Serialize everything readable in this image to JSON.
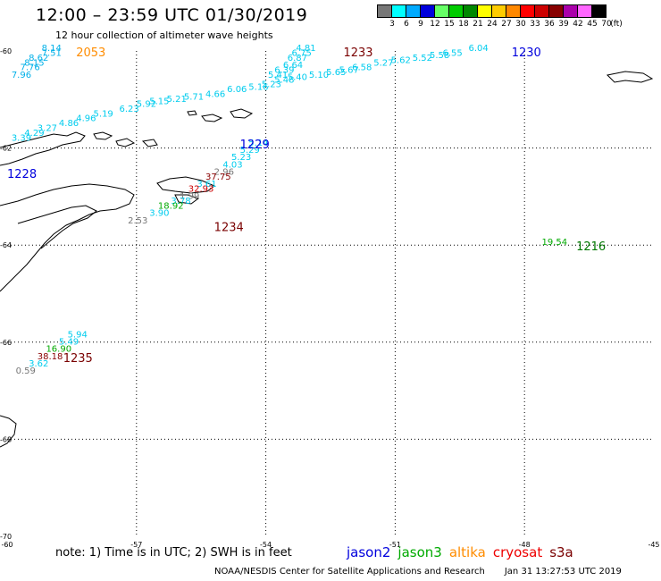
{
  "title": "12:00  –  23:59  UTC  01/30/2019",
  "subtitle": "12 hour collection of altimeter wave heights",
  "legend": {
    "unit": "(ft)",
    "levels": [
      {
        "label": "3",
        "color": "#777777"
      },
      {
        "label": "6",
        "color": "#00ffff"
      },
      {
        "label": "9",
        "color": "#00aaff"
      },
      {
        "label": "12",
        "color": "#0000dd"
      },
      {
        "label": "15",
        "color": "#66ff66"
      },
      {
        "label": "18",
        "color": "#00cc00"
      },
      {
        "label": "21",
        "color": "#008800"
      },
      {
        "label": "24",
        "color": "#ffff00"
      },
      {
        "label": "27",
        "color": "#ffcc00"
      },
      {
        "label": "30",
        "color": "#ff8800"
      },
      {
        "label": "33",
        "color": "#ff0000"
      },
      {
        "label": "36",
        "color": "#cc0000"
      },
      {
        "label": "39",
        "color": "#880000"
      },
      {
        "label": "42",
        "color": "#aa00aa"
      },
      {
        "label": "45",
        "color": "#ff66ff"
      },
      {
        "label": "70",
        "color": "#000000"
      }
    ]
  },
  "axes": {
    "lon_ticks": [
      "-60",
      "-57",
      "-54",
      "-51",
      "-48",
      "-45"
    ],
    "lat_ticks": [
      "-60",
      "-62",
      "-64",
      "-66",
      "-68",
      "-70"
    ]
  },
  "tracks": [
    {
      "time": "2053",
      "color": "#ff8c00",
      "lon": -58.4,
      "lat": -60.0
    },
    {
      "time": "1233",
      "color": "#7a0000",
      "lon": -52.2,
      "lat": -60.0
    },
    {
      "time": "1230",
      "color": "#0000dd",
      "lon": -48.3,
      "lat": -60.0
    },
    {
      "time": "1229",
      "color": "#0000dd",
      "lon": -54.6,
      "lat": -61.9
    },
    {
      "time": "1228",
      "color": "#0000dd",
      "lon": -60.0,
      "lat": -62.5
    },
    {
      "time": "1234",
      "color": "#7a0000",
      "lon": -55.2,
      "lat": -63.6
    },
    {
      "time": "1216",
      "color": "#007700",
      "lon": -46.8,
      "lat": -64.0
    },
    {
      "time": "1235",
      "color": "#7a0000",
      "lon": -58.7,
      "lat": -66.3
    }
  ],
  "wave_heights": [
    {
      "value": "8.14",
      "color": "#00b0e8",
      "lon": -59.2,
      "lat": -60.0
    },
    {
      "value": "7.51",
      "color": "#00b0e8",
      "lon": -59.2,
      "lat": -60.1
    },
    {
      "value": "8.62",
      "color": "#00b0e8",
      "lon": -59.5,
      "lat": -60.2
    },
    {
      "value": "8.15",
      "color": "#00b0e8",
      "lon": -59.6,
      "lat": -60.3
    },
    {
      "value": "7.76",
      "color": "#00b0e8",
      "lon": -59.7,
      "lat": -60.4
    },
    {
      "value": "7.96",
      "color": "#00b0e8",
      "lon": -59.9,
      "lat": -60.55
    },
    {
      "value": "4.81",
      "color": "#00ccee",
      "lon": -53.3,
      "lat": -60.0
    },
    {
      "value": "6.75",
      "color": "#00ccee",
      "lon": -53.4,
      "lat": -60.1
    },
    {
      "value": "6.87",
      "color": "#00ccee",
      "lon": -53.5,
      "lat": -60.2
    },
    {
      "value": "6.64",
      "color": "#00ccee",
      "lon": -53.6,
      "lat": -60.35
    },
    {
      "value": "6.39",
      "color": "#00ccee",
      "lon": -53.8,
      "lat": -60.45
    },
    {
      "value": "5.41",
      "color": "#00ccee",
      "lon": -53.95,
      "lat": -60.55
    },
    {
      "value": "6.04",
      "color": "#00ccee",
      "lon": -49.3,
      "lat": -60.0
    },
    {
      "value": "6.55",
      "color": "#00ccee",
      "lon": -49.9,
      "lat": -60.1
    },
    {
      "value": "5.58",
      "color": "#00ccee",
      "lon": -50.2,
      "lat": -60.15
    },
    {
      "value": "5.52",
      "color": "#00ccee",
      "lon": -50.6,
      "lat": -60.2
    },
    {
      "value": "5.62",
      "color": "#00ccee",
      "lon": -51.1,
      "lat": -60.25
    },
    {
      "value": "5.27",
      "color": "#00ccee",
      "lon": -51.5,
      "lat": -60.3
    },
    {
      "value": "6.58",
      "color": "#00ccee",
      "lon": -52.0,
      "lat": -60.4
    },
    {
      "value": "5.67",
      "color": "#00ccee",
      "lon": -52.3,
      "lat": -60.45
    },
    {
      "value": "5.65",
      "color": "#00ccee",
      "lon": -52.6,
      "lat": -60.5
    },
    {
      "value": "5.10",
      "color": "#00ccee",
      "lon": -53.0,
      "lat": -60.55
    },
    {
      "value": "5.40",
      "color": "#00ccee",
      "lon": -53.5,
      "lat": -60.6
    },
    {
      "value": "5.48",
      "color": "#00ccee",
      "lon": -53.8,
      "lat": -60.65
    },
    {
      "value": "5.23",
      "color": "#00ccee",
      "lon": -54.1,
      "lat": -60.75
    },
    {
      "value": "5.16",
      "color": "#00ccee",
      "lon": -54.4,
      "lat": -60.8
    },
    {
      "value": "6.06",
      "color": "#00ccee",
      "lon": -54.9,
      "lat": -60.85
    },
    {
      "value": "4.66",
      "color": "#00ccee",
      "lon": -55.4,
      "lat": -60.95
    },
    {
      "value": "5.71",
      "color": "#00ccee",
      "lon": -55.9,
      "lat": -61.0
    },
    {
      "value": "5.21",
      "color": "#00ccee",
      "lon": -56.3,
      "lat": -61.05
    },
    {
      "value": "5.15",
      "color": "#00ccee",
      "lon": -56.7,
      "lat": -61.1
    },
    {
      "value": "5.92",
      "color": "#00ccee",
      "lon": -57.0,
      "lat": -61.15
    },
    {
      "value": "6.23",
      "color": "#00ccee",
      "lon": -57.4,
      "lat": -61.25
    },
    {
      "value": "5.19",
      "color": "#00ccee",
      "lon": -58.0,
      "lat": -61.35
    },
    {
      "value": "4.96",
      "color": "#00ccee",
      "lon": -58.4,
      "lat": -61.45
    },
    {
      "value": "4.86",
      "color": "#00ccee",
      "lon": -58.8,
      "lat": -61.55
    },
    {
      "value": "3.27",
      "color": "#00ccee",
      "lon": -59.3,
      "lat": -61.65
    },
    {
      "value": "4.29",
      "color": "#00ccee",
      "lon": -59.6,
      "lat": -61.75
    },
    {
      "value": "3.39",
      "color": "#00ccee",
      "lon": -59.9,
      "lat": -61.85
    },
    {
      "value": "5.14",
      "color": "#00ccee",
      "lon": -54.4,
      "lat": -61.95
    },
    {
      "value": "5.29",
      "color": "#00ccee",
      "lon": -54.6,
      "lat": -62.1
    },
    {
      "value": "5.23",
      "color": "#00ccee",
      "lon": -54.8,
      "lat": -62.25
    },
    {
      "value": "4.03",
      "color": "#00ccee",
      "lon": -55.0,
      "lat": -62.4
    },
    {
      "value": "2.96",
      "color": "#777777",
      "lon": -55.2,
      "lat": -62.55
    },
    {
      "value": "37.75",
      "color": "#880000",
      "lon": -55.4,
      "lat": -62.65
    },
    {
      "value": "3.61",
      "color": "#00ccee",
      "lon": -55.6,
      "lat": -62.8
    },
    {
      "value": "32.93",
      "color": "#cc0000",
      "lon": -55.8,
      "lat": -62.9
    },
    {
      "value": "1.99",
      "color": "#777777",
      "lon": -56.0,
      "lat": -63.05
    },
    {
      "value": "3.78",
      "color": "#00ccee",
      "lon": -56.2,
      "lat": -63.15
    },
    {
      "value": "18.92",
      "color": "#00aa00",
      "lon": -56.5,
      "lat": -63.25
    },
    {
      "value": "3.90",
      "color": "#00ccee",
      "lon": -56.7,
      "lat": -63.4
    },
    {
      "value": "2.53",
      "color": "#777777",
      "lon": -57.2,
      "lat": -63.55
    },
    {
      "value": "19.54",
      "color": "#00aa00",
      "lon": -47.6,
      "lat": -64.0
    },
    {
      "value": "5.94",
      "color": "#00ccee",
      "lon": -58.6,
      "lat": -65.9
    },
    {
      "value": "5.49",
      "color": "#00ccee",
      "lon": -58.8,
      "lat": -66.05
    },
    {
      "value": "16.90",
      "color": "#00aa00",
      "lon": -59.1,
      "lat": -66.2
    },
    {
      "value": "38.18",
      "color": "#880000",
      "lon": -59.3,
      "lat": -66.35
    },
    {
      "value": "3.62",
      "color": "#00ccee",
      "lon": -59.5,
      "lat": -66.5
    },
    {
      "value": "0.59",
      "color": "#777777",
      "lon": -59.8,
      "lat": -66.65
    }
  ],
  "footer": {
    "note": "note:  1) Time is in UTC;  2) SWH is in feet",
    "satellites": [
      {
        "name": "jason2",
        "color": "#0000dd"
      },
      {
        "name": "jason3",
        "color": "#00aa00"
      },
      {
        "name": "altika",
        "color": "#ff8c00"
      },
      {
        "name": "cryosat",
        "color": "#ee0000"
      },
      {
        "name": "s3a",
        "color": "#7a0000"
      }
    ],
    "credit": "NOAA/NESDIS Center for Satellite Applications and Research",
    "timestamp": "Jan 31 13:27:53 UTC 2019"
  }
}
